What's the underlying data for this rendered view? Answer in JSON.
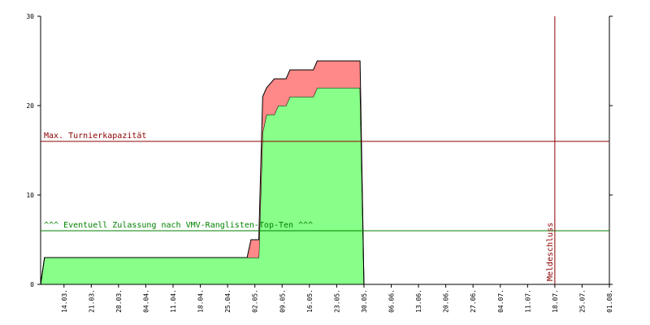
{
  "chart_data": {
    "type": "stacked-area",
    "x": [
      "08.03.",
      "09.03.",
      "30.04.",
      "01.05.",
      "03.05.",
      "04.05.",
      "05.05.",
      "07.05.",
      "08.05.",
      "10.05.",
      "11.05.",
      "17.05.",
      "18.05.",
      "29.05.",
      "30.05."
    ],
    "series": [
      {
        "color": "#88ff88",
        "values": [
          0,
          3,
          3,
          3,
          3,
          17,
          19,
          19,
          20,
          20,
          21,
          21,
          22,
          22,
          0
        ]
      },
      {
        "color": "#ff8888",
        "values": [
          0,
          0,
          0,
          2,
          2,
          4,
          3,
          4,
          3,
          3,
          3,
          3,
          3,
          3,
          0
        ]
      }
    ],
    "xlim": [
      "08.03.",
      "01.08."
    ],
    "xticks": [
      "14.03.",
      "21.03.",
      "28.03.",
      "04.04.",
      "11.04.",
      "18.04.",
      "25.04.",
      "02.05.",
      "09.05.",
      "16.05.",
      "23.05.",
      "30.05.",
      "06.06.",
      "13.06.",
      "20.06.",
      "27.06.",
      "04.07.",
      "11.07.",
      "18.07.",
      "25.07.",
      "01.08."
    ],
    "ylim": [
      0,
      30
    ],
    "yticks": [
      0,
      10,
      20,
      30
    ],
    "hlines": [
      {
        "value": 16,
        "label": "Max. Turnierkapazität",
        "color": "#8b0000"
      },
      {
        "value": 6,
        "label": "^^^ Eventuell Zulassung nach VMV-Ranglisten-Top-Ten ^^^",
        "color": "#008000"
      }
    ],
    "vlines": [
      {
        "value": "18.07.",
        "label": "Meldeschluss",
        "color": "#8b0000"
      }
    ]
  }
}
